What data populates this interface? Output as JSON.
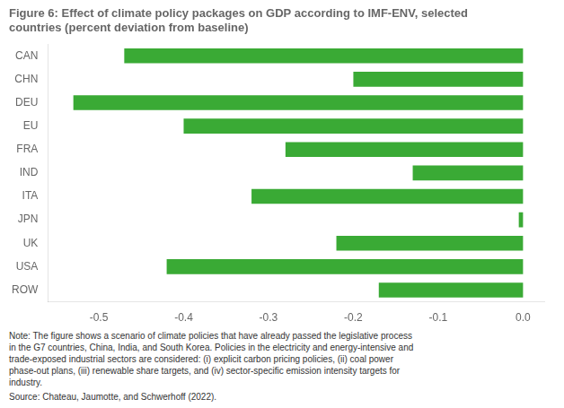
{
  "chart_data": {
    "type": "bar",
    "orientation": "horizontal",
    "title": "Figure 6: Effect of climate policy packages on GDP according to IMF-ENV, selected\ncountries (percent deviation from baseline)",
    "categories": [
      "CAN",
      "CHN",
      "DEU",
      "EU",
      "FRA",
      "IND",
      "ITA",
      "JPN",
      "UK",
      "USA",
      "ROW"
    ],
    "values": [
      -0.47,
      -0.2,
      -0.53,
      -0.4,
      -0.28,
      -0.13,
      -0.32,
      -0.005,
      -0.22,
      -0.42,
      -0.17
    ],
    "color": "#3aaa35",
    "xlim": [
      -0.56,
      0.025
    ],
    "xticks": [
      -0.5,
      -0.4,
      -0.3,
      -0.2,
      -0.1,
      {
        "value": 0,
        "label": "0.0"
      }
    ],
    "grid": false,
    "annotations": [
      "Note: The figure shows a scenario of climate policies that have already passed the legislative process\nin the G7 countries, China, India, and South Korea. Policies in the electricity and energy-intensive and\ntrade-exposed industrial sectors are considered: (i) explicit carbon pricing policies, (ii) coal power\nphase-out plans, (iii) renewable share targets, and (iv) sector-specific emission intensity targets for\nindustry.",
      "Source: Chateau, Jaumotte, and Schwerhoff (2022)."
    ]
  }
}
